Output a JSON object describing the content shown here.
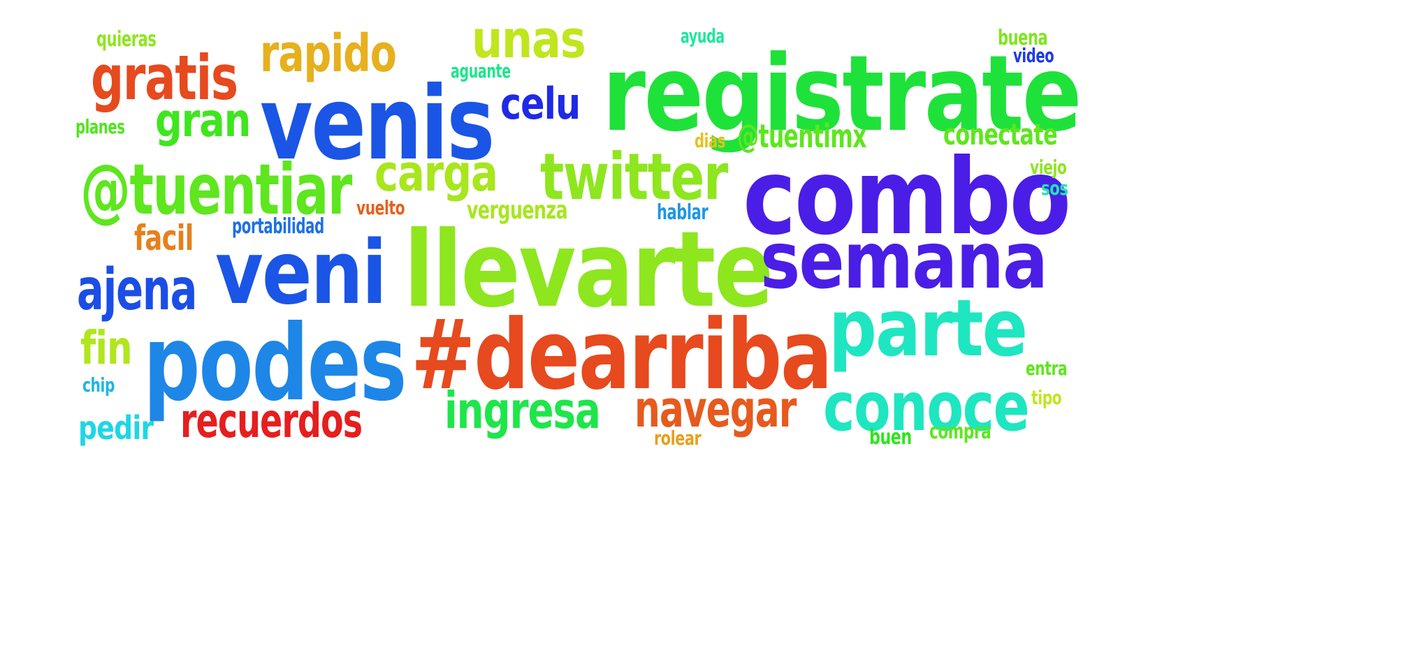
{
  "words": [
    {
      "text": "registrate",
      "color": "#1ee23a"
    },
    {
      "text": "venis",
      "color": "#1a55e6"
    },
    {
      "text": "combo",
      "color": "#4a1ee6"
    },
    {
      "text": "llevarte",
      "color": "#8ee61e"
    },
    {
      "text": "semana",
      "color": "#4a1ee6"
    },
    {
      "text": "#dearriba",
      "color": "#e64a1e"
    },
    {
      "text": "podes",
      "color": "#1e86e6"
    },
    {
      "text": "veni",
      "color": "#1a55e6"
    },
    {
      "text": "parte",
      "color": "#1ee6c0"
    },
    {
      "text": "conoce",
      "color": "#1ee6c0"
    },
    {
      "text": "@tuentiar",
      "color": "#5ee61e"
    },
    {
      "text": "twitter",
      "color": "#8ee61e"
    },
    {
      "text": "gratis",
      "color": "#e64a1e"
    },
    {
      "text": "rapido",
      "color": "#e6b01e"
    },
    {
      "text": "unas",
      "color": "#c0e61e"
    },
    {
      "text": "carga",
      "color": "#a8e61e"
    },
    {
      "text": "ingresa",
      "color": "#1ee64a"
    },
    {
      "text": "navegar",
      "color": "#e65a1e"
    },
    {
      "text": "recuerdos",
      "color": "#e61e1e"
    },
    {
      "text": "ajena",
      "color": "#1a4ee6"
    },
    {
      "text": "gran",
      "color": "#3ee61e"
    },
    {
      "text": "celu",
      "color": "#1e2ae6"
    },
    {
      "text": "@tuentimx",
      "color": "#5ee61e"
    },
    {
      "text": "conectate",
      "color": "#5ee61e"
    },
    {
      "text": "fin",
      "color": "#b0e61e"
    },
    {
      "text": "facil",
      "color": "#e6801e"
    },
    {
      "text": "pedir",
      "color": "#1ed6e6"
    },
    {
      "text": "verguenza",
      "color": "#a8e61e"
    },
    {
      "text": "portabilidad",
      "color": "#1e70e6"
    },
    {
      "text": "quieras",
      "color": "#8ee61e"
    },
    {
      "text": "aguante",
      "color": "#1ee68a"
    },
    {
      "text": "ayuda",
      "color": "#1ee6a0"
    },
    {
      "text": "buena",
      "color": "#7ee61e"
    },
    {
      "text": "video",
      "color": "#1e3ae6"
    },
    {
      "text": "planes",
      "color": "#4ee61e"
    },
    {
      "text": "dias",
      "color": "#e6c01e"
    },
    {
      "text": "vuelto",
      "color": "#e6601e"
    },
    {
      "text": "hablar",
      "color": "#1e96e6"
    },
    {
      "text": "viejo",
      "color": "#8ee61e"
    },
    {
      "text": "sos",
      "color": "#1ee6b0"
    },
    {
      "text": "chip",
      "color": "#1eb6e6"
    },
    {
      "text": "entra",
      "color": "#5ee61e"
    },
    {
      "text": "tipo",
      "color": "#c0e61e"
    },
    {
      "text": "rolear",
      "color": "#e6a01e"
    },
    {
      "text": "buen",
      "color": "#2ee61e"
    },
    {
      "text": "compra",
      "color": "#5ee61e"
    }
  ]
}
